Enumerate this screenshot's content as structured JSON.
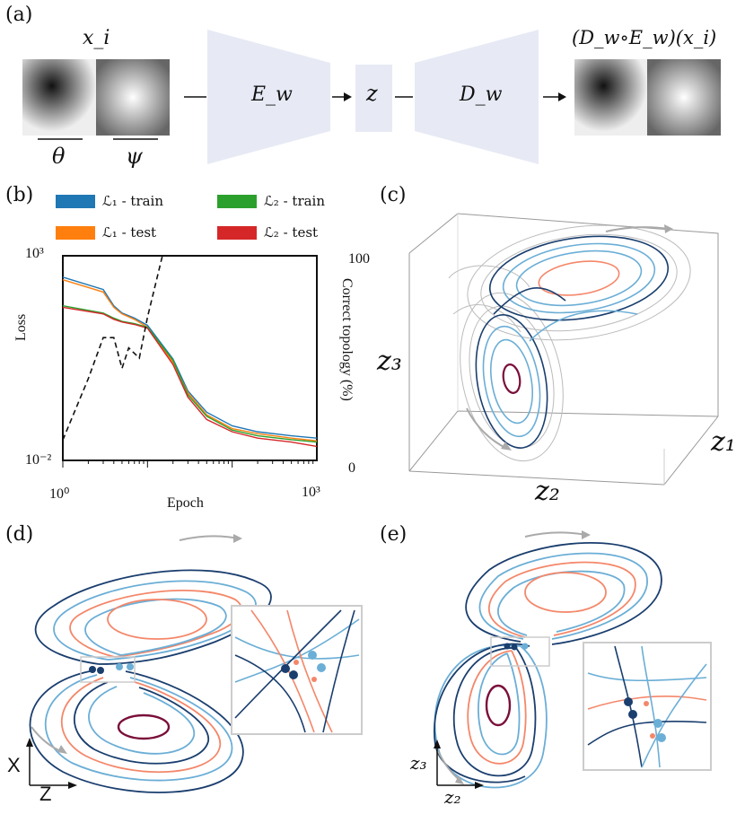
{
  "panel_labels": [
    "(a)",
    "(b)",
    "(c)",
    "(d)",
    "(e)"
  ],
  "panel_a": {
    "input_label": "x_i",
    "theta": "θ",
    "psi": "ψ",
    "encoder": "E_w",
    "latent": "z",
    "decoder": "D_w",
    "output_label": "(D_w∘E_w)(x_i)"
  },
  "panel_b": {
    "legend": [
      {
        "label": "ℒ₁ - train",
        "color": "#1f77b4"
      },
      {
        "label": "ℒ₂ - train",
        "color": "#2ca02c"
      },
      {
        "label": "ℒ₁ - test",
        "color": "#ff7f0e"
      },
      {
        "label": "ℒ₂ - test",
        "color": "#d62728"
      }
    ]
  },
  "chart_data": {
    "type": "line",
    "title": "",
    "xlabel": "Epoch",
    "ylabel": "Loss",
    "y2label": "Correct topology (%)",
    "xscale": "log",
    "yscale": "log",
    "xlim": [
      1,
      1000
    ],
    "ylim": [
      0.01,
      1000
    ],
    "y2lim": [
      0,
      100
    ],
    "x_ticks": [
      "10⁰",
      "10³"
    ],
    "y_ticks": [
      "10³",
      "10⁻²"
    ],
    "y2_ticks": [
      "100",
      "0"
    ],
    "x": [
      1,
      3,
      4,
      5,
      7,
      10,
      20,
      30,
      50,
      100,
      200,
      500,
      1000
    ],
    "series": [
      {
        "name": "ℒ₁ - train",
        "color": "#1f77b4",
        "values": [
          300,
          150,
          60,
          40,
          30,
          20,
          3,
          0.5,
          0.15,
          0.07,
          0.05,
          0.04,
          0.035
        ]
      },
      {
        "name": "ℒ₁ - test",
        "color": "#ff7f0e",
        "values": [
          260,
          130,
          55,
          38,
          28,
          18,
          2.5,
          0.45,
          0.13,
          0.06,
          0.045,
          0.035,
          0.03
        ]
      },
      {
        "name": "ℒ₂ - train",
        "color": "#2ca02c",
        "values": [
          60,
          40,
          30,
          25,
          22,
          18,
          2.8,
          0.4,
          0.12,
          0.055,
          0.04,
          0.032,
          0.028
        ]
      },
      {
        "name": "ℒ₂ - test",
        "color": "#d62728",
        "values": [
          55,
          38,
          28,
          24,
          21,
          17,
          2.2,
          0.35,
          0.1,
          0.05,
          0.035,
          0.028,
          0.022
        ]
      }
    ],
    "topology": {
      "name": "Correct topology",
      "x": [
        1,
        2,
        3,
        4,
        5,
        6,
        8,
        10,
        15,
        20,
        1000
      ],
      "values": [
        10,
        40,
        60,
        60,
        45,
        55,
        50,
        70,
        100,
        100,
        100
      ]
    }
  },
  "panel_c": {
    "z1": "z₁",
    "z2": "z₂",
    "z3": "z₃"
  },
  "panel_d": {
    "x_axis": "X",
    "z_axis": "Z"
  },
  "panel_e": {
    "z2_axis": "z₂",
    "z3_axis": "z₃"
  }
}
